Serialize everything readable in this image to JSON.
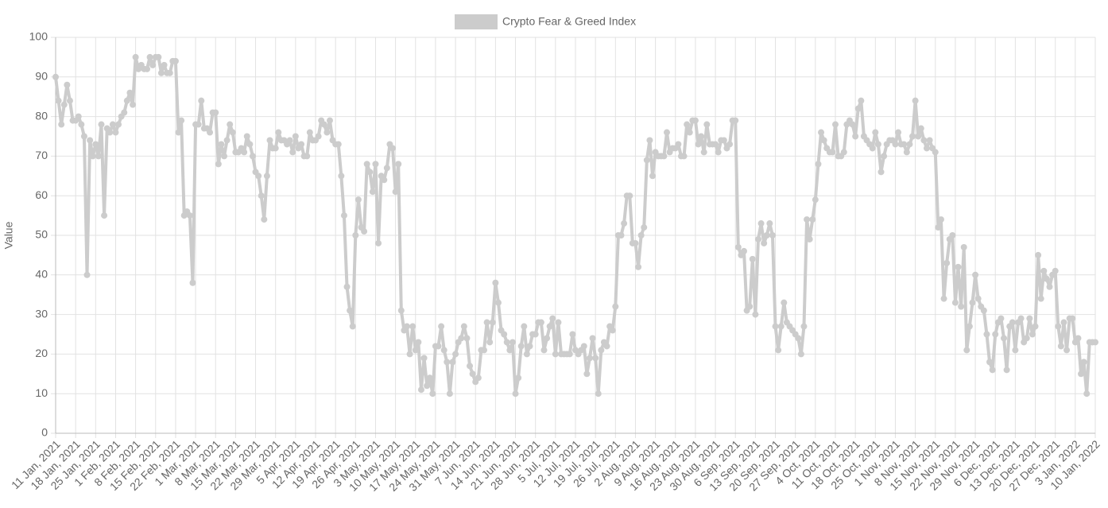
{
  "chart_data": {
    "type": "line",
    "y_label": "Value",
    "ylim": [
      0,
      100
    ],
    "yticks": [
      0,
      10,
      20,
      30,
      40,
      50,
      60,
      70,
      80,
      90,
      100
    ],
    "grid": true,
    "legend": "top",
    "categories": [
      "11 Jan, 2021",
      null,
      null,
      null,
      null,
      null,
      null,
      "18 Jan, 2021",
      null,
      null,
      null,
      null,
      null,
      null,
      "25 Jan, 2021",
      null,
      null,
      null,
      null,
      null,
      null,
      "1 Feb, 2021",
      null,
      null,
      null,
      null,
      null,
      null,
      "8 Feb, 2021",
      null,
      null,
      null,
      null,
      null,
      null,
      "15 Feb, 2021",
      null,
      null,
      null,
      null,
      null,
      null,
      "22 Feb, 2021",
      null,
      null,
      null,
      null,
      null,
      null,
      "1 Mar, 2021",
      null,
      null,
      null,
      null,
      null,
      null,
      "8 Mar, 2021",
      null,
      null,
      null,
      null,
      null,
      null,
      "15 Mar, 2021",
      null,
      null,
      null,
      null,
      null,
      null,
      "22 Mar, 2021",
      null,
      null,
      null,
      null,
      null,
      null,
      "29 Mar, 2021",
      null,
      null,
      null,
      null,
      null,
      null,
      "5 Apr, 2021",
      null,
      null,
      null,
      null,
      null,
      null,
      "12 Apr, 2021",
      null,
      null,
      null,
      null,
      null,
      null,
      "19 Apr, 2021",
      null,
      null,
      null,
      null,
      null,
      null,
      "26 Apr, 2021",
      null,
      null,
      null,
      null,
      null,
      null,
      "3 May, 2021",
      null,
      null,
      null,
      null,
      null,
      null,
      "10 May, 2021",
      null,
      null,
      null,
      null,
      null,
      null,
      "17 May, 2021",
      null,
      null,
      null,
      null,
      null,
      null,
      "24 May, 2021",
      null,
      null,
      null,
      null,
      null,
      null,
      "31 May, 2021",
      null,
      null,
      null,
      null,
      null,
      null,
      "7 Jun, 2021",
      null,
      null,
      null,
      null,
      null,
      null,
      "14 Jun, 2021",
      null,
      null,
      null,
      null,
      null,
      null,
      "21 Jun, 2021",
      null,
      null,
      null,
      null,
      null,
      null,
      "28 Jun, 2021",
      null,
      null,
      null,
      null,
      null,
      null,
      "5 Jul, 2021",
      null,
      null,
      null,
      null,
      null,
      null,
      "12 Jul, 2021",
      null,
      null,
      null,
      null,
      null,
      null,
      "19 Jul, 2021",
      null,
      null,
      null,
      null,
      null,
      null,
      "26 Jul, 2021",
      null,
      null,
      null,
      null,
      null,
      null,
      "2 Aug, 2021",
      null,
      null,
      null,
      null,
      null,
      null,
      "9 Aug, 2021",
      null,
      null,
      null,
      null,
      null,
      null,
      "16 Aug, 2021",
      null,
      null,
      null,
      null,
      null,
      null,
      "23 Aug, 2021",
      null,
      null,
      null,
      null,
      null,
      null,
      "30 Aug, 2021",
      null,
      null,
      null,
      null,
      null,
      null,
      "6 Sep, 2021",
      null,
      null,
      null,
      null,
      null,
      null,
      "13 Sep, 2021",
      null,
      null,
      null,
      null,
      null,
      null,
      "20 Sep, 2021",
      null,
      null,
      null,
      null,
      null,
      null,
      "27 Sep, 2021",
      null,
      null,
      null,
      null,
      null,
      null,
      "4 Oct, 2021",
      null,
      null,
      null,
      null,
      null,
      null,
      "11 Oct, 2021",
      null,
      null,
      null,
      null,
      null,
      null,
      "18 Oct, 2021",
      null,
      null,
      null,
      null,
      null,
      null,
      "25 Oct, 2021",
      null,
      null,
      null,
      null,
      null,
      null,
      "1 Nov, 2021",
      null,
      null,
      null,
      null,
      null,
      null,
      "8 Nov, 2021",
      null,
      null,
      null,
      null,
      null,
      null,
      "15 Nov, 2021",
      null,
      null,
      null,
      null,
      null,
      null,
      "22 Nov, 2021",
      null,
      null,
      null,
      null,
      null,
      null,
      "29 Nov, 2021",
      null,
      null,
      null,
      null,
      null,
      null,
      "6 Dec, 2021",
      null,
      null,
      null,
      null,
      null,
      null,
      "13 Dec, 2021",
      null,
      null,
      null,
      null,
      null,
      null,
      "20 Dec, 2021",
      null,
      null,
      null,
      null,
      null,
      null,
      "27 Dec, 2021",
      null,
      null,
      null,
      null,
      null,
      null,
      "3 Jan, 2022",
      null,
      null,
      null,
      null,
      null,
      null,
      "10 Jan, 2022"
    ],
    "series": [
      {
        "name": "Crypto Fear & Greed Index",
        "color": "#cccccc",
        "values": [
          90,
          84,
          78,
          83,
          88,
          84,
          79,
          79,
          80,
          78,
          75,
          40,
          74,
          70,
          73,
          70,
          78,
          55,
          77,
          76,
          78,
          76,
          78,
          80,
          81,
          84,
          86,
          83,
          95,
          92,
          93,
          92,
          92,
          95,
          93,
          95,
          95,
          91,
          93,
          91,
          91,
          94,
          94,
          76,
          79,
          55,
          56,
          55,
          38,
          78,
          78,
          84,
          77,
          77,
          76,
          81,
          81,
          68,
          73,
          70,
          74,
          78,
          76,
          71,
          71,
          72,
          71,
          75,
          73,
          70,
          66,
          65,
          60,
          54,
          65,
          74,
          72,
          72,
          76,
          74,
          74,
          73,
          74,
          71,
          75,
          72,
          73,
          70,
          70,
          76,
          74,
          74,
          75,
          79,
          78,
          76,
          79,
          74,
          73,
          73,
          65,
          55,
          37,
          31,
          27,
          50,
          59,
          52,
          51,
          68,
          66,
          61,
          68,
          48,
          65,
          64,
          67,
          73,
          72,
          61,
          68,
          31,
          26,
          27,
          20,
          27,
          21,
          23,
          11,
          19,
          12,
          14,
          10,
          22,
          22,
          27,
          21,
          18,
          10,
          18,
          20,
          23,
          24,
          27,
          24,
          17,
          15,
          13,
          14,
          21,
          21,
          28,
          23,
          28,
          38,
          33,
          26,
          25,
          23,
          21,
          23,
          10,
          14,
          22,
          27,
          20,
          22,
          25,
          25,
          28,
          28,
          21,
          24,
          27,
          29,
          20,
          28,
          20,
          20,
          20,
          20,
          25,
          21,
          20,
          21,
          22,
          15,
          19,
          24,
          19,
          10,
          21,
          23,
          22,
          27,
          26,
          32,
          50,
          50,
          53,
          60,
          60,
          48,
          48,
          42,
          50,
          52,
          69,
          74,
          65,
          71,
          70,
          70,
          70,
          76,
          71,
          72,
          72,
          73,
          70,
          70,
          78,
          76,
          79,
          79,
          73,
          75,
          71,
          78,
          73,
          73,
          73,
          71,
          74,
          74,
          72,
          73,
          79,
          79,
          47,
          45,
          46,
          31,
          32,
          44,
          30,
          49,
          53,
          48,
          50,
          53,
          50,
          27,
          21,
          27,
          33,
          28,
          27,
          26,
          25,
          24,
          20,
          27,
          54,
          49,
          54,
          59,
          68,
          76,
          74,
          72,
          71,
          71,
          78,
          70,
          70,
          71,
          78,
          79,
          78,
          75,
          82,
          84,
          75,
          74,
          73,
          72,
          76,
          73,
          66,
          70,
          73,
          74,
          74,
          73,
          76,
          73,
          73,
          71,
          73,
          75,
          84,
          75,
          77,
          74,
          72,
          74,
          72,
          71,
          52,
          54,
          34,
          43,
          49,
          50,
          33,
          42,
          32,
          47,
          21,
          27,
          33,
          40,
          34,
          32,
          31,
          25,
          18,
          16,
          25,
          28,
          29,
          24,
          16,
          27,
          28,
          21,
          28,
          29,
          23,
          24,
          29,
          25,
          27,
          45,
          34,
          41,
          39,
          37,
          40,
          41,
          27,
          22,
          28,
          21,
          29,
          29,
          23,
          24,
          15,
          18,
          10,
          23,
          23,
          23
        ]
      }
    ]
  }
}
